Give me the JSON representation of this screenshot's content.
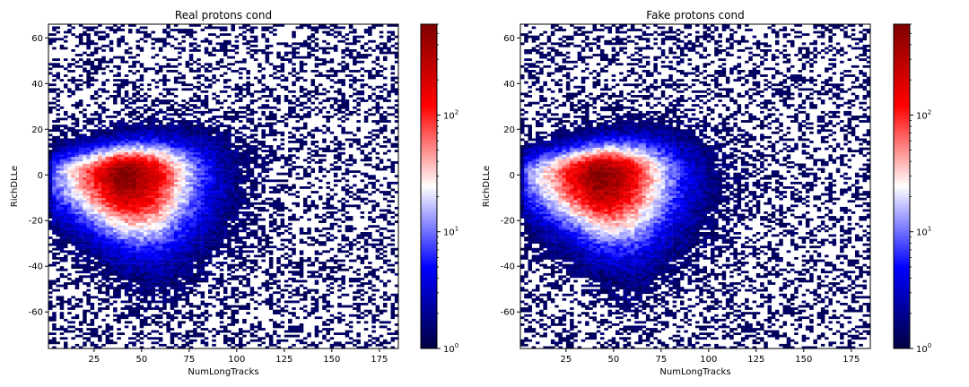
{
  "chart_data": [
    {
      "type": "heatmap",
      "title": "Real protons cond",
      "xlabel": "NumLongTracks",
      "ylabel": "RichDLLe",
      "xlim": [
        1,
        185
      ],
      "ylim": [
        -76,
        66
      ],
      "xticks": [
        25,
        50,
        75,
        100,
        125,
        150,
        175
      ],
      "yticks": [
        -60,
        -40,
        -20,
        0,
        20,
        40,
        60
      ],
      "colorbar": {
        "scale": "log",
        "range": [
          1,
          600
        ],
        "ticks": [
          {
            "base": "10",
            "exp": "0",
            "value": 1
          },
          {
            "base": "10",
            "exp": "1",
            "value": 10
          },
          {
            "base": "10",
            "exp": "2",
            "value": 100
          }
        ],
        "colormap": [
          "#000040",
          "#0000ff",
          "#ffffff",
          "#ff0000",
          "#800000"
        ]
      },
      "density": {
        "core_y": 0,
        "x_peak": 38,
        "x_range_dense": [
          3,
          125
        ],
        "x_range_sparse": [
          5,
          186
        ],
        "y_range_dense": [
          -50,
          22
        ],
        "y_outliers": [
          -76,
          66
        ],
        "peak_count": 600
      }
    },
    {
      "type": "heatmap",
      "title": "Fake protons cond",
      "xlabel": "NumLongTracks",
      "ylabel": "RichDLLe",
      "xlim": [
        1,
        185
      ],
      "ylim": [
        -76,
        66
      ],
      "xticks": [
        25,
        50,
        75,
        100,
        125,
        150,
        175
      ],
      "yticks": [
        -60,
        -40,
        -20,
        0,
        20,
        40,
        60
      ],
      "colorbar": {
        "scale": "log",
        "range": [
          1,
          600
        ],
        "ticks": [
          {
            "base": "10",
            "exp": "0",
            "value": 1
          },
          {
            "base": "10",
            "exp": "1",
            "value": 10
          },
          {
            "base": "10",
            "exp": "2",
            "value": 100
          }
        ],
        "colormap": [
          "#000040",
          "#0000ff",
          "#ffffff",
          "#ff0000",
          "#800000"
        ]
      },
      "density": {
        "core_y": 0,
        "x_peak": 40,
        "x_range_dense": [
          3,
          125
        ],
        "x_range_sparse": [
          5,
          185
        ],
        "y_range_dense": [
          -52,
          22
        ],
        "y_outliers": [
          -56,
          40
        ],
        "peak_count": 600
      }
    }
  ]
}
